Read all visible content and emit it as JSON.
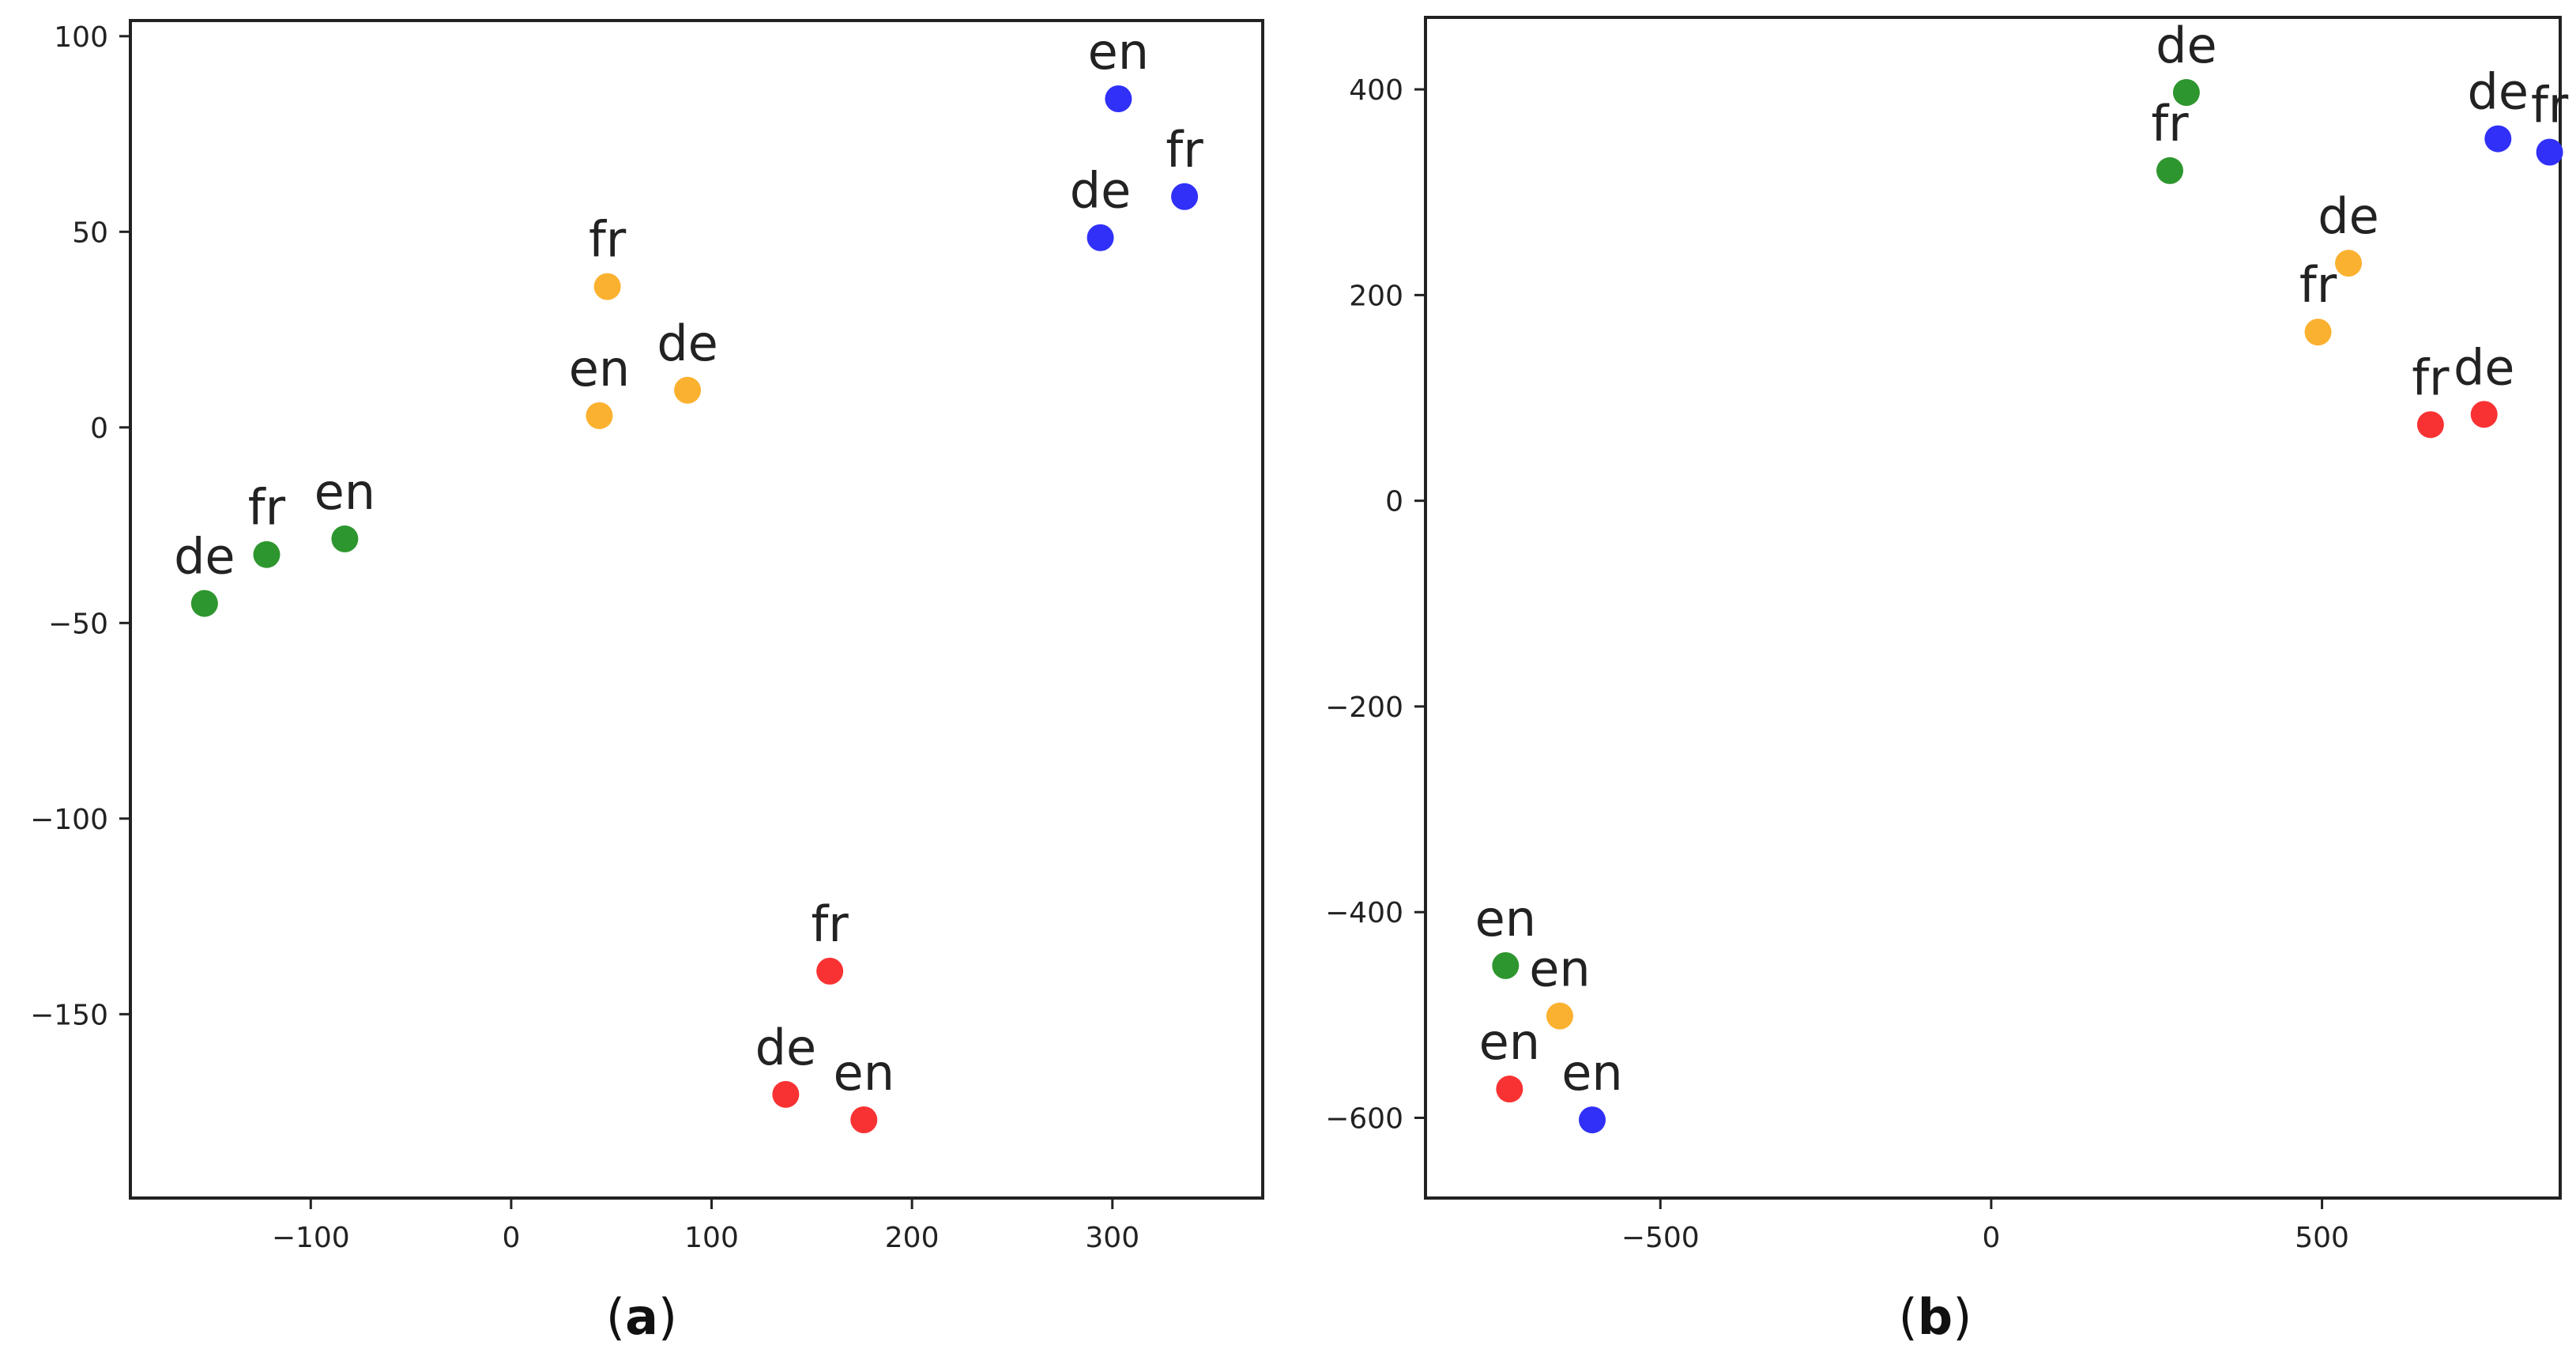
{
  "colors": {
    "green": "#2e962e",
    "orange": "#fbb130",
    "blue": "#3030f8",
    "red": "#f83232"
  },
  "chart_data": [
    {
      "type": "scatter",
      "caption": "(a)",
      "caption_letter": "a",
      "title": "",
      "xlabel": "",
      "ylabel": "",
      "xlim": [
        -190,
        375
      ],
      "ylim": [
        -197,
        104
      ],
      "xticks": [
        -100,
        0,
        100,
        200,
        300
      ],
      "yticks": [
        100,
        50,
        0,
        -50,
        -100,
        -150
      ],
      "grid": false,
      "points": [
        {
          "label": "de",
          "x": -153,
          "y": -45,
          "color": "green"
        },
        {
          "label": "fr",
          "x": -122,
          "y": -32.5,
          "color": "green"
        },
        {
          "label": "en",
          "x": -83,
          "y": -28.5,
          "color": "green"
        },
        {
          "label": "fr",
          "x": 48,
          "y": 36,
          "color": "orange"
        },
        {
          "label": "en",
          "x": 44,
          "y": 3,
          "color": "orange"
        },
        {
          "label": "de",
          "x": 88,
          "y": 9.5,
          "color": "orange"
        },
        {
          "label": "en",
          "x": 303,
          "y": 84,
          "color": "blue"
        },
        {
          "label": "de",
          "x": 294,
          "y": 48.5,
          "color": "blue"
        },
        {
          "label": "fr",
          "x": 336,
          "y": 59,
          "color": "blue"
        },
        {
          "label": "fr",
          "x": 159,
          "y": -139,
          "color": "red"
        },
        {
          "label": "de",
          "x": 137,
          "y": -170.5,
          "color": "red"
        },
        {
          "label": "en",
          "x": 176,
          "y": -177,
          "color": "red"
        }
      ]
    },
    {
      "type": "scatter",
      "caption": "(b)",
      "caption_letter": "b",
      "title": "",
      "xlabel": "",
      "ylabel": "",
      "xlim": [
        -855,
        860
      ],
      "ylim": [
        -678,
        470
      ],
      "xticks": [
        -500,
        0,
        500
      ],
      "yticks": [
        400,
        200,
        0,
        -200,
        -400,
        -600
      ],
      "grid": false,
      "points": [
        {
          "label": "de",
          "x": 295,
          "y": 397,
          "color": "green"
        },
        {
          "label": "fr",
          "x": 270,
          "y": 321,
          "color": "green"
        },
        {
          "label": "en",
          "x": -734,
          "y": -452,
          "color": "green"
        },
        {
          "label": "de",
          "x": 540,
          "y": 231,
          "color": "orange"
        },
        {
          "label": "fr",
          "x": 494,
          "y": 164,
          "color": "orange"
        },
        {
          "label": "en",
          "x": -652,
          "y": -501,
          "color": "orange"
        },
        {
          "label": "de",
          "x": 766,
          "y": 352,
          "color": "blue"
        },
        {
          "label": "fr",
          "x": 844,
          "y": 339,
          "color": "blue"
        },
        {
          "label": "en",
          "x": -603,
          "y": -602,
          "color": "blue"
        },
        {
          "label": "fr",
          "x": 664,
          "y": 74,
          "color": "red"
        },
        {
          "label": "de",
          "x": 745,
          "y": 84,
          "color": "red"
        },
        {
          "label": "en",
          "x": -728,
          "y": -572,
          "color": "red"
        }
      ]
    }
  ]
}
